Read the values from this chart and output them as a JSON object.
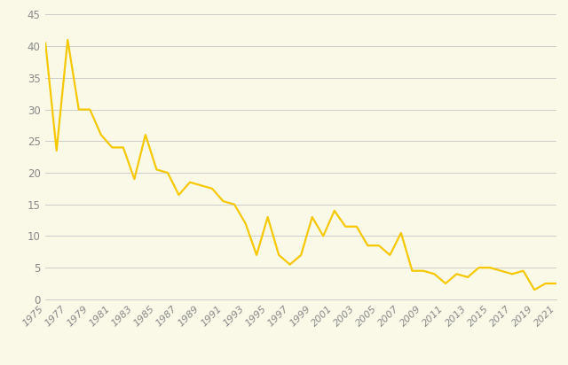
{
  "years": [
    1975,
    1976,
    1977,
    1978,
    1979,
    1980,
    1981,
    1982,
    1983,
    1984,
    1985,
    1986,
    1987,
    1988,
    1989,
    1990,
    1991,
    1992,
    1993,
    1994,
    1995,
    1996,
    1997,
    1998,
    1999,
    2000,
    2001,
    2002,
    2003,
    2004,
    2005,
    2006,
    2007,
    2008,
    2009,
    2010,
    2011,
    2012,
    2013,
    2014,
    2015,
    2016,
    2017,
    2018,
    2019,
    2020,
    2021
  ],
  "values": [
    40.5,
    23.5,
    41.0,
    30.0,
    30.0,
    26.0,
    24.0,
    24.0,
    19.0,
    26.0,
    20.5,
    20.0,
    16.5,
    18.5,
    18.0,
    17.5,
    15.5,
    15.0,
    12.0,
    7.0,
    13.0,
    7.0,
    5.5,
    7.0,
    13.0,
    10.0,
    14.0,
    11.5,
    11.5,
    8.5,
    8.5,
    7.0,
    10.5,
    4.5,
    4.5,
    4.0,
    2.5,
    4.0,
    3.5,
    5.0,
    5.0,
    4.5,
    4.0,
    4.5,
    1.5,
    2.5,
    2.5
  ],
  "line_color": "#F5C800",
  "background_color": "#FAF9E8",
  "grid_color": "#CCCCCC",
  "tick_label_color": "#888888",
  "ylim": [
    0,
    45
  ],
  "yticks": [
    0,
    5,
    10,
    15,
    20,
    25,
    30,
    35,
    40,
    45
  ],
  "xtick_labels": [
    "1975",
    "1977",
    "1979",
    "1981",
    "1983",
    "1985",
    "1987",
    "1989",
    "1991",
    "1993",
    "1995",
    "1997",
    "1999",
    "2001",
    "2003",
    "2005",
    "2007",
    "2009",
    "2011",
    "2013",
    "2015",
    "2017",
    "2019",
    "2021"
  ],
  "xtick_years": [
    1975,
    1977,
    1979,
    1981,
    1983,
    1985,
    1987,
    1989,
    1991,
    1993,
    1995,
    1997,
    1999,
    2001,
    2003,
    2005,
    2007,
    2009,
    2011,
    2013,
    2015,
    2017,
    2019,
    2021
  ],
  "line_width": 1.6
}
